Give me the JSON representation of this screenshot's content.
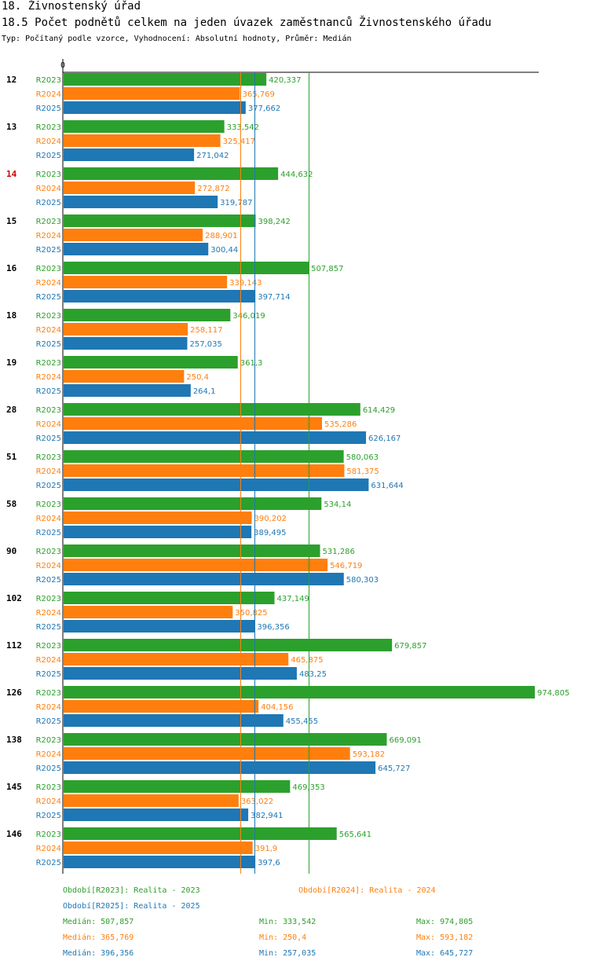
{
  "header": {
    "title": "18. Živnostenský úřad",
    "subtitle": "18.5 Počet podnětů celkem na jeden úvazek zaměstnanců Živnostenského úřadu",
    "meta": "Typ: Počítaný podle vzorce, Vyhodnocení: Absolutní hodnoty, Průměr: Medián"
  },
  "colors": {
    "R2023": "#2ca02c",
    "R2024": "#ff7f0e",
    "R2025": "#1f77b4",
    "highlight": "#cc0000",
    "axis": "#000000"
  },
  "chart_data": {
    "type": "bar",
    "orientation": "horizontal",
    "axis_zero_label": "0",
    "xlim": [
      0,
      974.805
    ],
    "highlighted_category": "14",
    "categories": [
      "12",
      "13",
      "14",
      "15",
      "16",
      "18",
      "19",
      "28",
      "51",
      "58",
      "90",
      "102",
      "112",
      "126",
      "138",
      "145",
      "146"
    ],
    "series": [
      {
        "name": "R2023",
        "values": [
          420.337,
          333.542,
          444.632,
          398.242,
          507.857,
          346.019,
          361.3,
          614.429,
          580.063,
          534.14,
          531.286,
          437.149,
          679.857,
          974.805,
          669.091,
          469.353,
          565.641
        ],
        "labels": [
          "420,337",
          "333,542",
          "444,632",
          "398,242",
          "507,857",
          "346,019",
          "361,3",
          "614,429",
          "580,063",
          "534,14",
          "531,286",
          "437,149",
          "679,857",
          "974,805",
          "669,091",
          "469,353",
          "565,641"
        ]
      },
      {
        "name": "R2024",
        "values": [
          365.769,
          325.417,
          272.872,
          288.901,
          339.143,
          258.117,
          250.4,
          535.286,
          581.375,
          390.202,
          546.719,
          350.825,
          465.875,
          404.156,
          593.182,
          363.022,
          391.9
        ],
        "labels": [
          "365,769",
          "325,417",
          "272,872",
          "288,901",
          "339,143",
          "258,117",
          "250,4",
          "535,286",
          "581,375",
          "390,202",
          "546,719",
          "350,825",
          "465,875",
          "404,156",
          "593,182",
          "363,022",
          "391,9"
        ]
      },
      {
        "name": "R2025",
        "values": [
          377.662,
          271.042,
          319.787,
          300.44,
          397.714,
          257.035,
          264.1,
          626.167,
          631.644,
          389.495,
          580.303,
          396.356,
          483.25,
          455.455,
          645.727,
          382.941,
          397.6
        ],
        "labels": [
          "377,662",
          "271,042",
          "319,787",
          "300,44",
          "397,714",
          "257,035",
          "264,1",
          "626,167",
          "631,644",
          "389,495",
          "580,303",
          "396,356",
          "483,25",
          "455,455",
          "645,727",
          "382,941",
          "397,6"
        ]
      }
    ],
    "median_lines": {
      "R2023": 507.857,
      "R2024": 365.769,
      "R2025": 396.356
    }
  },
  "legend": {
    "r2023": "Období[R2023]: Realita - 2023",
    "r2024": "Období[R2024]: Realita - 2024",
    "r2025": "Období[R2025]: Realita - 2025"
  },
  "stats": [
    {
      "median": "Medián: 507,857",
      "min": "Min: 333,542",
      "max": "Max: 974,805"
    },
    {
      "median": "Medián: 365,769",
      "min": "Min: 250,4",
      "max": "Max: 593,182"
    },
    {
      "median": "Medián: 396,356",
      "min": "Min: 257,035",
      "max": "Max: 645,727"
    }
  ]
}
